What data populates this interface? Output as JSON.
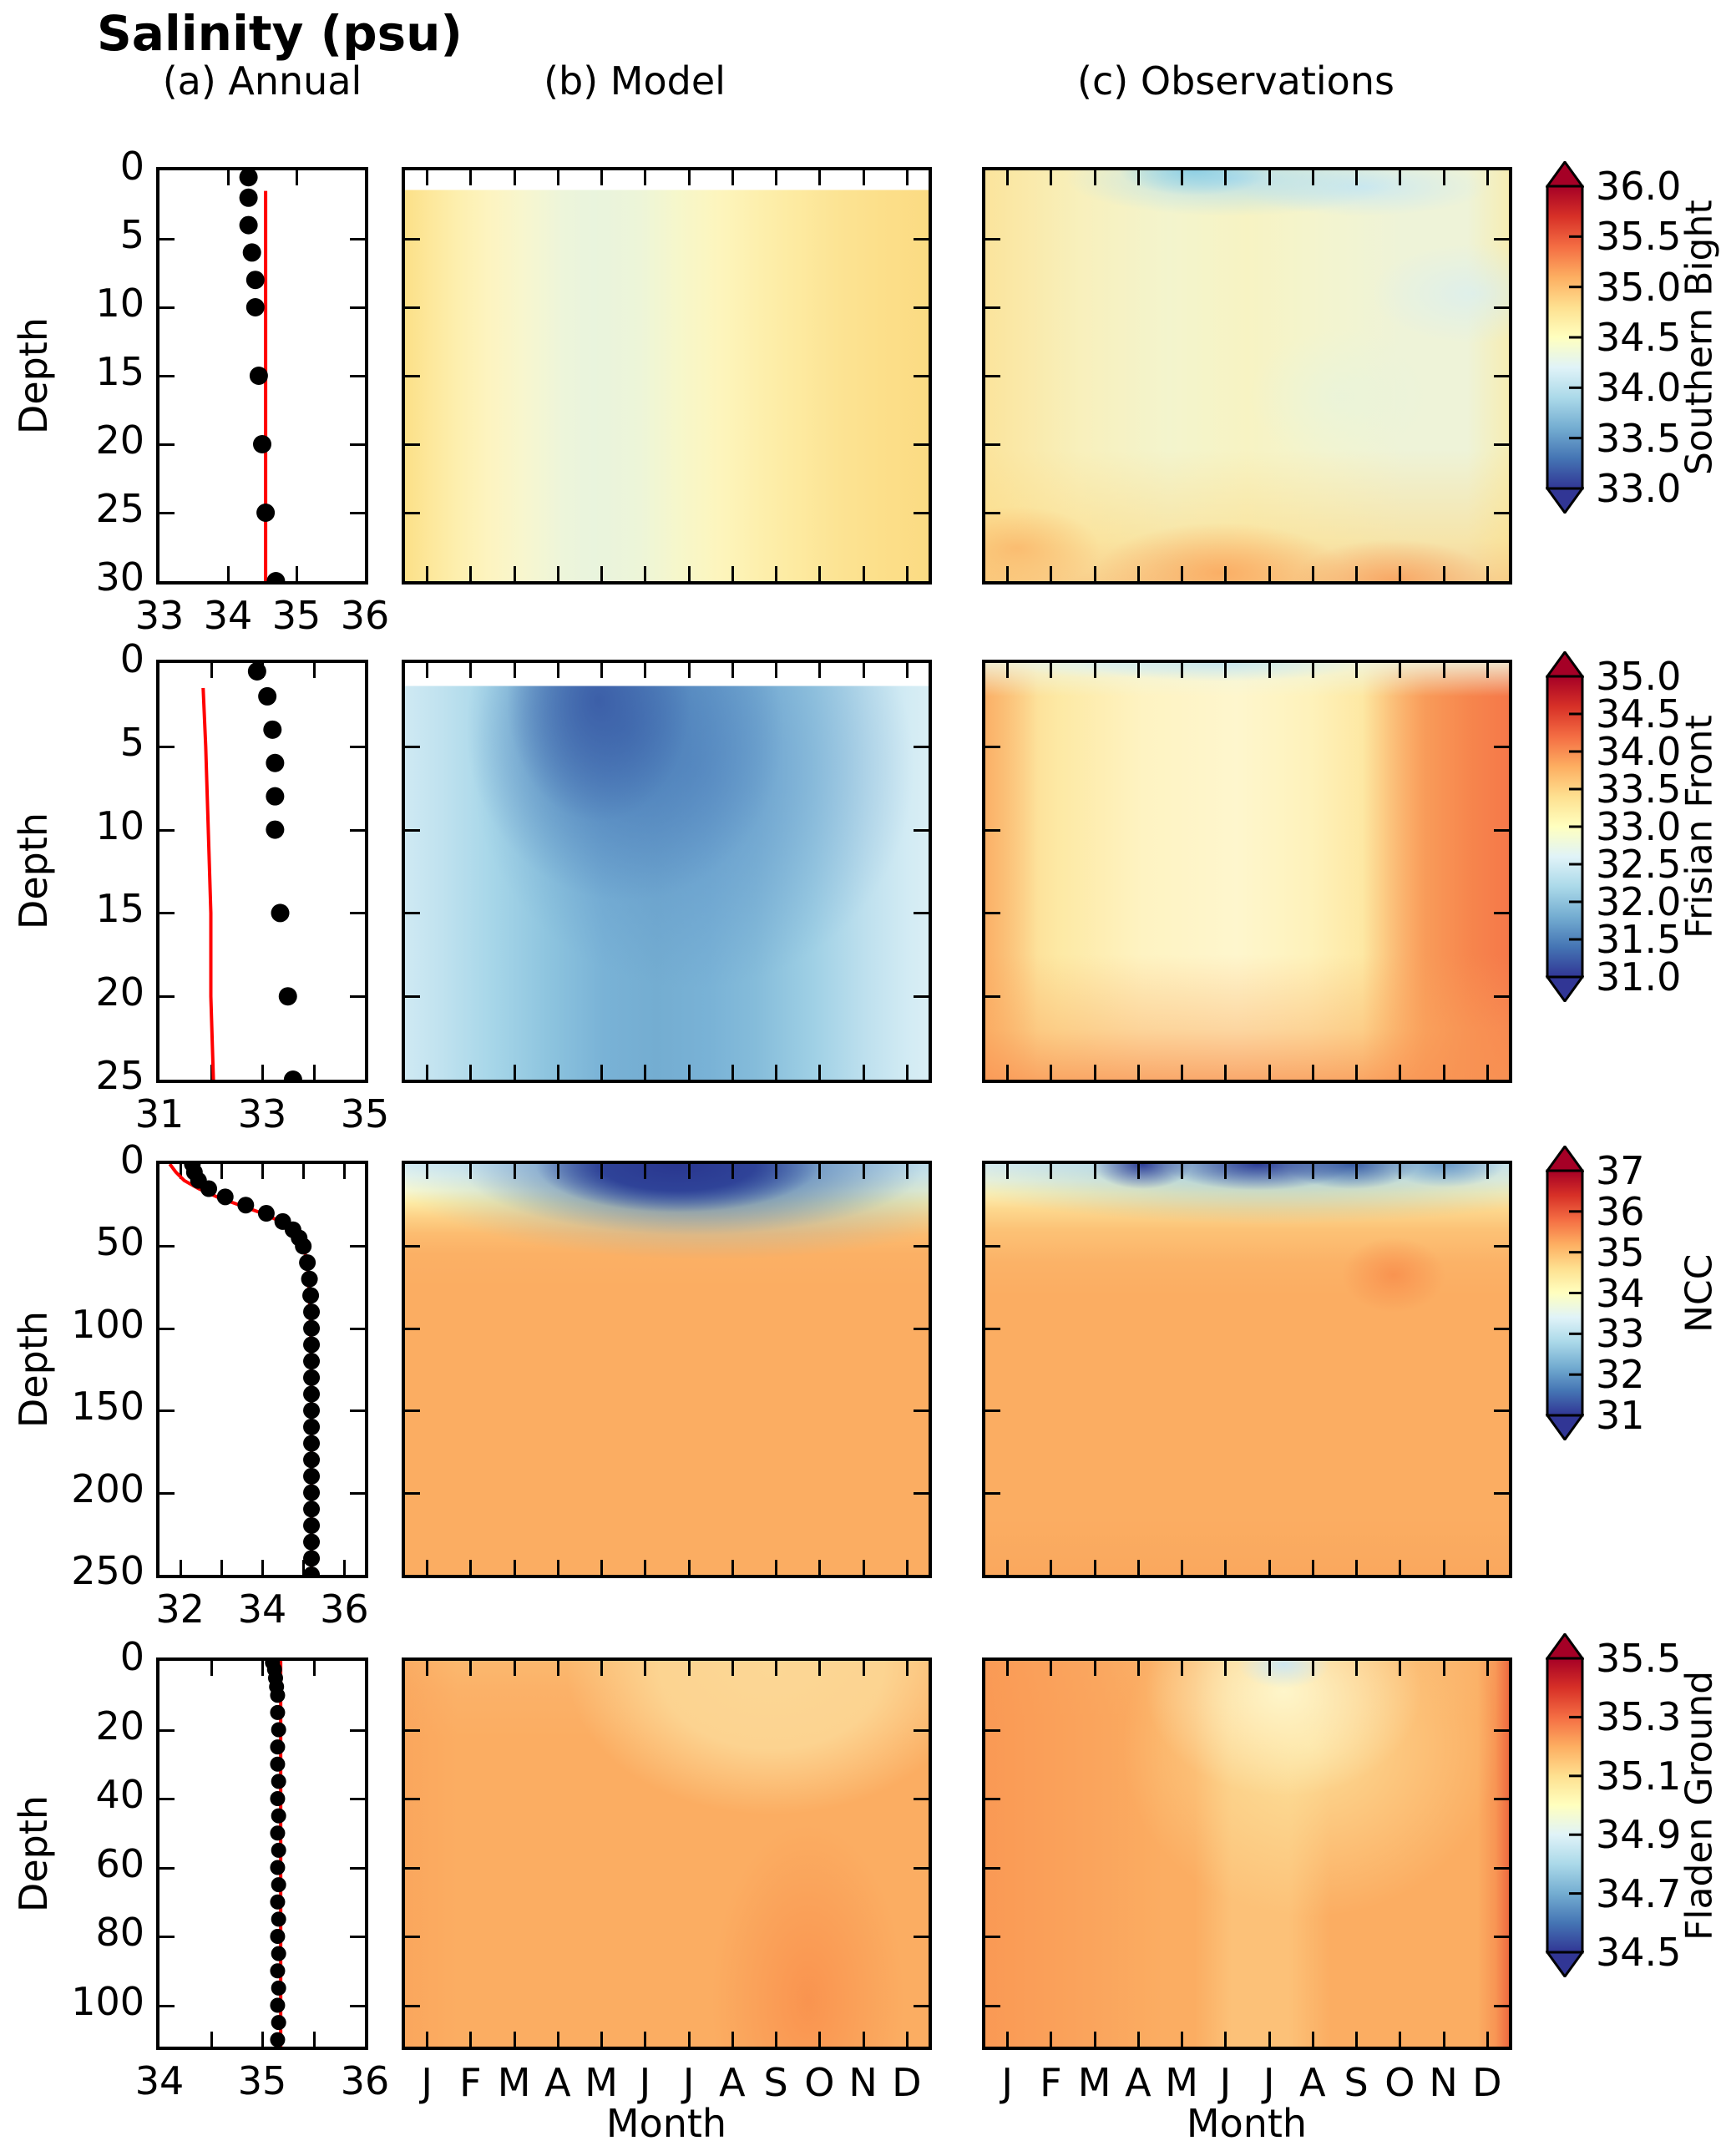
{
  "title": "Salinity (psu)",
  "column_headers": {
    "annual": "(a) Annual",
    "model": "(b) Model",
    "observations": "(c) Observations"
  },
  "axis_labels": {
    "depth": "Depth",
    "month": "Month"
  },
  "month_letters": [
    "J",
    "F",
    "M",
    "A",
    "M",
    "J",
    "J",
    "A",
    "S",
    "O",
    "N",
    "D"
  ],
  "colormap": {
    "name": "RdYlBu_r",
    "low_to_high_stops": [
      "#313695",
      "#4575b4",
      "#74add1",
      "#abd9e9",
      "#e0f3f8",
      "#ffffbf",
      "#fee090",
      "#fdae61",
      "#f46d43",
      "#d73027",
      "#a50026"
    ]
  },
  "line_colors": {
    "observation_dots": "#000000",
    "model_profile_line": "#ff0000"
  },
  "chart_data": [
    {
      "type": "heatmap",
      "region": "Southern Bight",
      "depth_axis": {
        "min": 0,
        "max": 30,
        "ticks": [
          0,
          5,
          10,
          15,
          20,
          25,
          30
        ]
      },
      "salinity_axis": {
        "min": 33,
        "max": 36,
        "ticks": [
          33,
          34,
          35,
          36
        ],
        "minor": []
      },
      "colorbar": {
        "min": 33.0,
        "max": 36.0,
        "ticks": [
          "36.0",
          "35.5",
          "35.0",
          "34.5",
          "34.0",
          "33.5",
          "33.0"
        ]
      },
      "annual_profile": {
        "obs_points": [
          [
            34.3,
            0.5
          ],
          [
            34.3,
            2
          ],
          [
            34.3,
            4
          ],
          [
            34.35,
            6
          ],
          [
            34.4,
            8
          ],
          [
            34.4,
            10
          ],
          [
            34.45,
            15
          ],
          [
            34.5,
            20
          ],
          [
            34.55,
            25
          ],
          [
            34.7,
            30
          ]
        ],
        "model_line": [
          [
            34.55,
            1.5
          ],
          [
            34.55,
            30
          ]
        ],
        "dot_radius_px": 11
      },
      "model_monthly": {
        "months": [
          "J",
          "F",
          "M",
          "A",
          "M",
          "J",
          "J",
          "A",
          "S",
          "O",
          "N",
          "D"
        ],
        "surface": [
          34.7,
          34.6,
          34.5,
          34.45,
          34.4,
          34.45,
          34.5,
          34.55,
          34.6,
          34.65,
          34.7,
          34.75
        ],
        "bottom": [
          34.7,
          34.6,
          34.5,
          34.45,
          34.4,
          34.45,
          34.5,
          34.55,
          34.6,
          34.65,
          34.7,
          34.75
        ]
      },
      "obs_monthly": {
        "months": [
          "J",
          "F",
          "M",
          "A",
          "M",
          "J",
          "J",
          "A",
          "S",
          "O",
          "N",
          "D"
        ],
        "surface": [
          34.5,
          34.4,
          34.2,
          34.0,
          34.0,
          34.1,
          34.2,
          34.1,
          34.3,
          34.4,
          34.4,
          34.45
        ],
        "bottom": [
          34.6,
          34.5,
          34.55,
          34.5,
          34.5,
          34.6,
          34.7,
          34.65,
          34.6,
          34.7,
          34.6,
          34.6
        ]
      }
    },
    {
      "type": "heatmap",
      "region": "Frisian Front",
      "depth_axis": {
        "min": 0,
        "max": 25,
        "ticks": [
          0,
          5,
          10,
          15,
          20,
          25
        ]
      },
      "salinity_axis": {
        "min": 31,
        "max": 35,
        "ticks": [
          31,
          33,
          35
        ],
        "minor": [
          32,
          34
        ]
      },
      "colorbar": {
        "min": 31.0,
        "max": 35.0,
        "ticks": [
          "35.0",
          "34.5",
          "34.0",
          "33.5",
          "33.0",
          "32.5",
          "32.0",
          "31.5",
          "31.0"
        ]
      },
      "annual_profile": {
        "obs_points": [
          [
            32.9,
            0.5
          ],
          [
            33.1,
            2
          ],
          [
            33.2,
            4
          ],
          [
            33.25,
            6
          ],
          [
            33.25,
            8
          ],
          [
            33.25,
            10
          ],
          [
            33.35,
            15
          ],
          [
            33.5,
            20
          ],
          [
            33.6,
            25
          ]
        ],
        "model_line": [
          [
            31.85,
            1.5
          ],
          [
            31.9,
            5
          ],
          [
            31.95,
            10
          ],
          [
            32.0,
            15
          ],
          [
            32.0,
            20
          ],
          [
            32.05,
            25
          ]
        ],
        "dot_radius_px": 11
      },
      "model_monthly": {
        "months": [
          "J",
          "F",
          "M",
          "A",
          "M",
          "J",
          "J",
          "A",
          "S",
          "O",
          "N",
          "D"
        ],
        "surface": [
          32.6,
          32.3,
          31.9,
          31.5,
          31.4,
          31.7,
          31.6,
          31.9,
          32.1,
          32.3,
          32.5,
          32.7
        ],
        "bottom": [
          32.7,
          32.5,
          32.3,
          32.1,
          32.0,
          32.0,
          32.1,
          32.0,
          32.2,
          32.5,
          32.7,
          32.8
        ]
      },
      "obs_monthly": {
        "months": [
          "J",
          "F",
          "M",
          "A",
          "M",
          "J",
          "J",
          "A",
          "S",
          "O",
          "N",
          "D"
        ],
        "surface": [
          33.6,
          33.3,
          33.2,
          33.1,
          33.2,
          33.2,
          33.4,
          33.5,
          34.0,
          34.2,
          34.1,
          33.9
        ],
        "bottom": [
          34.0,
          33.8,
          33.7,
          33.6,
          33.7,
          33.6,
          33.8,
          33.8,
          34.0,
          34.3,
          34.4,
          34.2
        ]
      }
    },
    {
      "type": "heatmap",
      "region": "NCC",
      "depth_axis": {
        "min": 0,
        "max": 250,
        "ticks": [
          0,
          50,
          100,
          150,
          200,
          250
        ]
      },
      "salinity_axis": {
        "min": 31.5,
        "max": 36.5,
        "ticks": [
          32,
          34,
          36
        ],
        "minor": [
          33,
          35
        ]
      },
      "colorbar": {
        "min": 31,
        "max": 37,
        "ticks": [
          "37",
          "36",
          "35",
          "34",
          "33",
          "32",
          "31"
        ]
      },
      "annual_profile": {
        "obs_points": [
          [
            32.3,
            0
          ],
          [
            32.35,
            5
          ],
          [
            32.45,
            10
          ],
          [
            32.7,
            15
          ],
          [
            33.1,
            20
          ],
          [
            33.6,
            25
          ],
          [
            34.1,
            30
          ],
          [
            34.5,
            35
          ],
          [
            34.75,
            40
          ],
          [
            34.9,
            45
          ],
          [
            35.0,
            50
          ],
          [
            35.1,
            60
          ],
          [
            35.15,
            70
          ],
          [
            35.18,
            80
          ],
          [
            35.2,
            90
          ],
          [
            35.2,
            100
          ],
          [
            35.2,
            110
          ],
          [
            35.2,
            120
          ],
          [
            35.2,
            130
          ],
          [
            35.2,
            140
          ],
          [
            35.2,
            150
          ],
          [
            35.2,
            160
          ],
          [
            35.2,
            170
          ],
          [
            35.2,
            180
          ],
          [
            35.2,
            190
          ],
          [
            35.2,
            200
          ],
          [
            35.2,
            210
          ],
          [
            35.2,
            220
          ],
          [
            35.2,
            230
          ],
          [
            35.2,
            240
          ],
          [
            35.2,
            250
          ]
        ],
        "model_line": [
          [
            31.75,
            0
          ],
          [
            31.9,
            5
          ],
          [
            32.1,
            10
          ],
          [
            32.45,
            15
          ],
          [
            32.9,
            20
          ],
          [
            33.45,
            25
          ],
          [
            34.0,
            30
          ],
          [
            34.45,
            35
          ],
          [
            34.75,
            40
          ],
          [
            35.0,
            50
          ],
          [
            35.1,
            60
          ],
          [
            35.15,
            80
          ],
          [
            35.18,
            100
          ],
          [
            35.2,
            150
          ],
          [
            35.2,
            200
          ],
          [
            35.2,
            250
          ]
        ],
        "dot_radius_px": 10
      },
      "model_monthly": {
        "months": [
          "J",
          "F",
          "M",
          "A",
          "M",
          "J",
          "J",
          "A",
          "S",
          "O",
          "N",
          "D"
        ],
        "surface": [
          33.0,
          33.0,
          32.5,
          31.8,
          31.3,
          31.2,
          31.2,
          31.3,
          31.5,
          32.0,
          32.8,
          33.0
        ],
        "bottom": [
          35.2,
          35.2,
          35.2,
          35.2,
          35.2,
          35.2,
          35.2,
          35.2,
          35.2,
          35.2,
          35.2,
          35.2
        ]
      },
      "obs_monthly": {
        "months": [
          "J",
          "F",
          "M",
          "A",
          "M",
          "J",
          "J",
          "A",
          "S",
          "O",
          "N",
          "D"
        ],
        "surface": [
          33.2,
          33.0,
          31.8,
          32.0,
          31.5,
          31.3,
          31.4,
          31.6,
          32.0,
          32.5,
          33.0,
          33.2
        ],
        "bottom": [
          35.2,
          35.2,
          35.2,
          35.2,
          35.2,
          35.2,
          35.2,
          35.2,
          35.2,
          35.2,
          35.2,
          35.2
        ]
      }
    },
    {
      "type": "heatmap",
      "region": "Fladen Ground",
      "depth_axis": {
        "min": 0,
        "max": 112,
        "ticks": [
          0,
          20,
          40,
          60,
          80,
          100
        ]
      },
      "salinity_axis": {
        "min": 34,
        "max": 36,
        "ticks": [
          34,
          35,
          36
        ],
        "minor": [
          34.5,
          35.5
        ]
      },
      "colorbar": {
        "min": 34.5,
        "max": 35.5,
        "ticks": [
          "35.5",
          "35.3",
          "35.1",
          "34.9",
          "34.7",
          "34.5"
        ]
      },
      "annual_profile": {
        "obs_points": [
          [
            35.1,
            0.5
          ],
          [
            35.12,
            2.5
          ],
          [
            35.13,
            5
          ],
          [
            35.14,
            7.5
          ],
          [
            35.15,
            10
          ],
          [
            35.15,
            15
          ],
          [
            35.16,
            20
          ],
          [
            35.15,
            25
          ],
          [
            35.15,
            30
          ],
          [
            35.16,
            35
          ],
          [
            35.15,
            40
          ],
          [
            35.16,
            45
          ],
          [
            35.15,
            50
          ],
          [
            35.16,
            55
          ],
          [
            35.15,
            60
          ],
          [
            35.16,
            65
          ],
          [
            35.15,
            70
          ],
          [
            35.16,
            75
          ],
          [
            35.15,
            80
          ],
          [
            35.16,
            85
          ],
          [
            35.15,
            90
          ],
          [
            35.16,
            95
          ],
          [
            35.15,
            100
          ],
          [
            35.16,
            105
          ],
          [
            35.15,
            110
          ]
        ],
        "model_line": [
          [
            35.18,
            0
          ],
          [
            35.18,
            112
          ]
        ],
        "dot_radius_px": 9
      },
      "model_monthly": {
        "months": [
          "J",
          "F",
          "M",
          "A",
          "M",
          "J",
          "J",
          "A",
          "S",
          "O",
          "N",
          "D"
        ],
        "surface": [
          35.2,
          35.2,
          35.2,
          35.2,
          35.2,
          35.2,
          35.15,
          35.1,
          35.1,
          35.15,
          35.2,
          35.2
        ],
        "bottom": [
          35.2,
          35.2,
          35.2,
          35.2,
          35.2,
          35.2,
          35.2,
          35.2,
          35.25,
          35.3,
          35.25,
          35.2
        ]
      },
      "obs_monthly": {
        "months": [
          "J",
          "F",
          "M",
          "A",
          "M",
          "J",
          "J",
          "A",
          "S",
          "O",
          "N",
          "D"
        ],
        "surface": [
          35.3,
          35.3,
          35.25,
          35.2,
          35.15,
          35.0,
          34.85,
          34.9,
          35.0,
          35.1,
          35.2,
          35.35
        ],
        "bottom": [
          35.3,
          35.3,
          35.25,
          35.2,
          35.2,
          35.2,
          35.15,
          35.2,
          35.2,
          35.2,
          35.2,
          35.4
        ]
      }
    }
  ]
}
